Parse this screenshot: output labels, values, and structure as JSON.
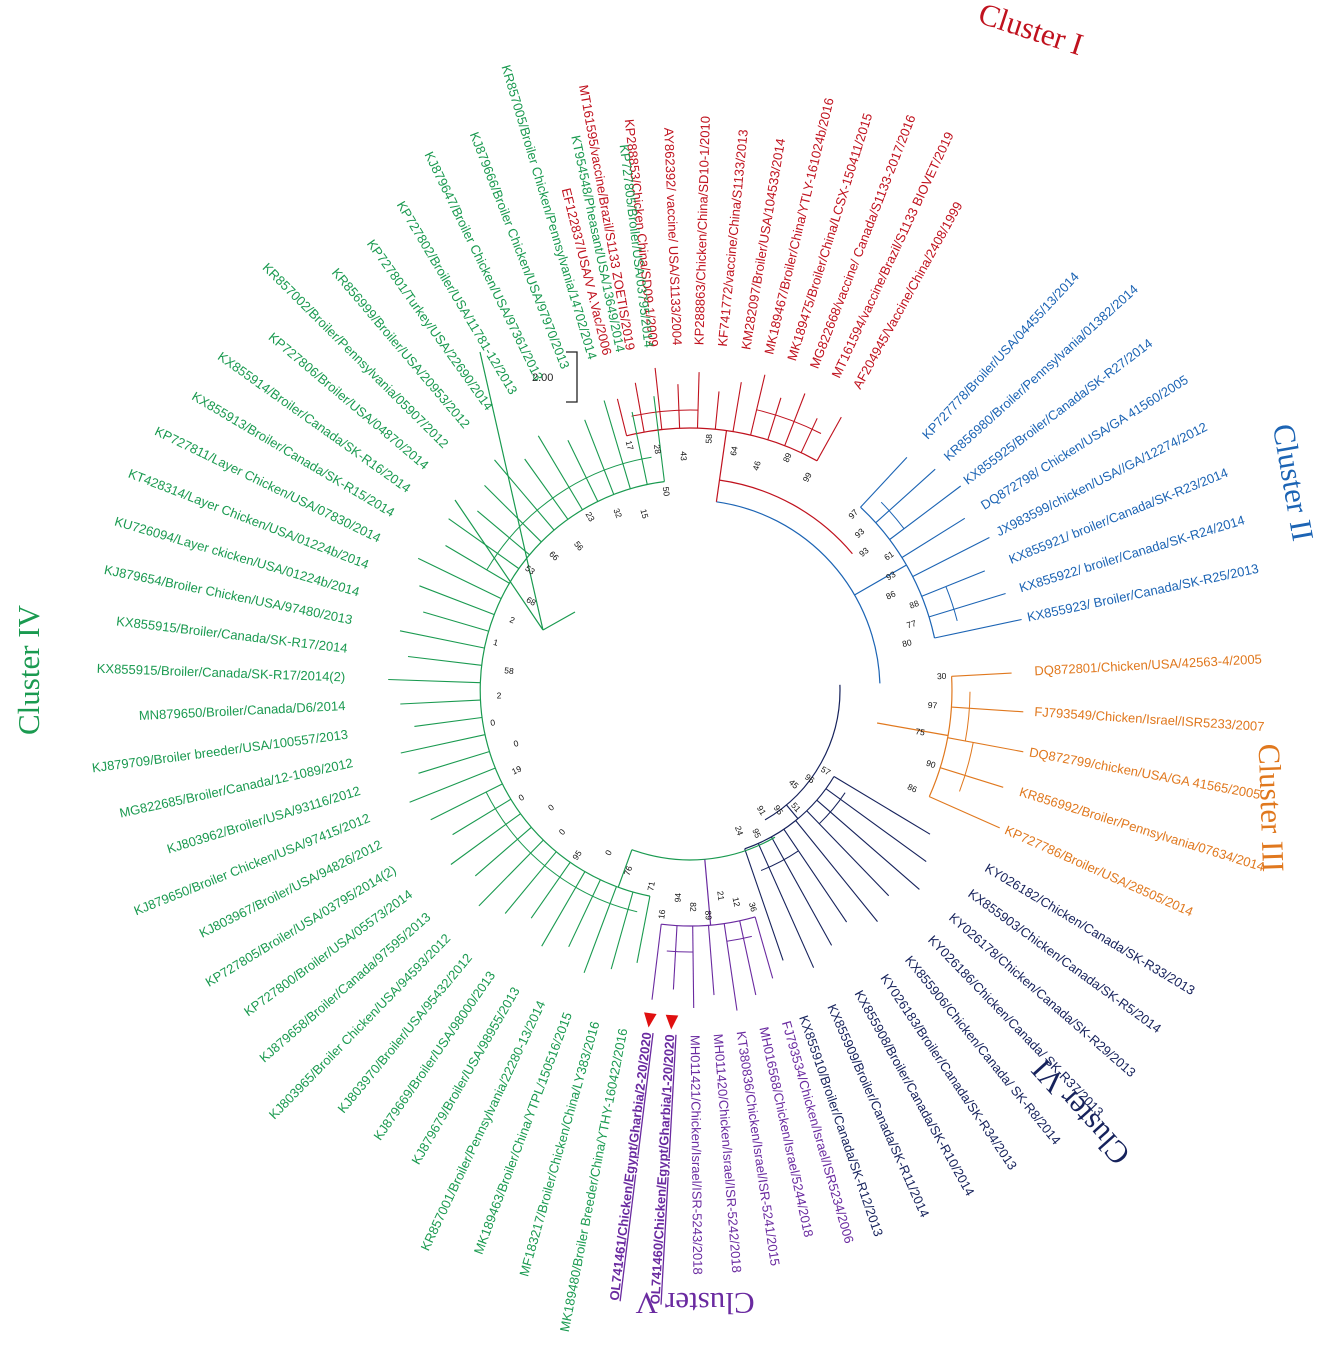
{
  "scale_bar": {
    "label": "2.00"
  },
  "clusters": [
    {
      "id": "I",
      "title": "Cluster I",
      "color": "#c0121e",
      "boot_values": [
        "17",
        "28",
        "43",
        "58",
        "64",
        "46",
        "89",
        "99"
      ],
      "leaves": [
        "EF122837/USA/V A.Vac/2006",
        "MT161595/vaccine/Brazil/S1133 ZOETIS/2019",
        "KP288853/Chicken China/SD09-1/2009",
        "AY862392/ vaccine/ USA/S1133/2004",
        "KP288863/Chicken/China/SD10-1/2010",
        "KF741772/vaccine/China/S1133/2013",
        "KM282097/Broiler/USA/104533/2014",
        "MK189467/Broiler/China/YTLY-161024b/2016",
        "MK189475/Broiler/China/LCSX-150411/2015",
        "MG822668/vaccine/ Canada/S1133-2017/2016",
        "MT161594/vaccine/Brazil/S1133 BIOVET/2019",
        "AF204945/Vaccine/China/2408/1999"
      ]
    },
    {
      "id": "II",
      "title": "Cluster II",
      "color": "#1c64b4",
      "boot_values": [
        "97",
        "93",
        "93",
        "61",
        "93",
        "86",
        "88",
        "77",
        "80"
      ],
      "leaves": [
        "KP727778/Broiler/USA/04455/13/2014",
        "KR856980/Broiler/Pennsylvania/01382/2014",
        "KX855925/Broiler/Canada/SK-R27/2014",
        "DQ872798/ Chicken/USA/GA 41560/2005",
        "JX983599/chicken/USA//GA/12274/2012",
        "KX855921/ broiler/Canada/SK-R23/2014",
        "KX855922/ broiler/Canada/SK-R24/2014",
        "KX855923/ Broiler/Canada/SK-R25/2013"
      ]
    },
    {
      "id": "III",
      "title": "Cluster III",
      "color": "#e0781e",
      "boot_values": [
        "30",
        "97",
        "75",
        "90",
        "86"
      ],
      "leaves": [
        "DQ872801/Chicken/USA/42563-4/2005",
        "FJ793549/Chicken/Israel/ISR5233/2007",
        "DQ872799/chicken/USA/GA 41565/2005",
        "KR856992/Broiler/Pennsylvania/07634/2014",
        "KP727786/Broiler/USA/28505/2014"
      ]
    },
    {
      "id": "VI",
      "title": "Cluster VI",
      "color": "#16225c",
      "boot_values": [
        "57",
        "96",
        "45",
        "51",
        "95",
        "91",
        "95",
        "24"
      ],
      "leaves": [
        "KY026182/Chicken/Canada/SK-R33/2013",
        "KX855903/Chicken/Canada/SK-R5/2014",
        "KY026178/Chicken/Canada/SK-R29/2013",
        "KY026186/Chicken/Canada/ SK-R37/2013",
        "KX855906/Chicken/Canada/ SK-R8/2014",
        "KY026183/Broiler/Canada/SK-R34/2013",
        "KX855908/Broiler/Canada/SK-R10/2014",
        "KX855909/Broiler/Canada/SK-R11/2014",
        "KX855910/Broiler/Canada/SK-R12/2013"
      ]
    },
    {
      "id": "V",
      "title": "Cluster V",
      "color": "#6a2aa0",
      "boot_values": [
        "36",
        "12",
        "21",
        "89",
        "82",
        "94",
        "16"
      ],
      "leaves": [
        "FJ793534/Chicken/Israel/ISR5234/2006",
        "MH016568/Chicken/Israel/5244/2018",
        "KT380836/Chicken/Israel/ISR-5241/2015",
        "MH011420/Chicken/Israel/ISR-5242/2018",
        "MH011421/Chicken/Israel/ISR-5243/2018",
        "OL741460/Chicken/Egypt/Gharbia/1-20/2020",
        "OL741461/Chicken/Egypt/Gharbia/2-20/2020"
      ]
    },
    {
      "id": "IV",
      "title": "Cluster IV",
      "color": "#1a9a50",
      "boot_values": [
        "71",
        "76",
        "0",
        "95",
        "0",
        "0",
        "0",
        "19",
        "0",
        "0",
        "2",
        "58",
        "1",
        "2",
        "68",
        "53",
        "66",
        "56",
        "23",
        "32",
        "15",
        "50"
      ],
      "leaves": [
        "MK189480/Broiler Breeder/China/YTHY-160422/2016",
        "MF183217/Broiler/Chicken/China/LY383/2016",
        "MK189463/Broiler/China/YTPL/150516/2015",
        "KR857001/Broiler/Pennsylvania/22280-13/2014",
        "KJ879679/Broiler/USA/98955/2013",
        "KJ879669/Broiler/USA/98000/2013",
        "KJ803970/Broiler/USA/95432/2012",
        "KJ803965/Broiler Chicken/USA/94593/2012",
        "KJ879658/Broiler/Canada/97595/2013",
        "KP727800/Broiler/USA/05573/2014",
        "KP727805/Broiler/USA/03795/2014(2)",
        "KJ803967/Broiler/USA/94826/2012",
        "KJ879650/Broiler Chicken/USA/97415/2012",
        "KJ803962/Broiler/USA/93116/2012",
        "MG822685/Broiler/Canada/12-1089/2012",
        "KJ879709/Broiler breeder/USA/100557/2013",
        "MN879650/Broiler/Canada/D6/2014",
        "KX855915/Broiler/Canada/SK-R17/2014(2)",
        "KX855915/Broiler/Canada/SK-R17/2014",
        "KJ879654/Broiler Chicken/USA/97480/2013",
        "KU726094/Layer ckicken/USA/01224b/2014",
        "KT428314/Layer Chicken/USA/01224b/2014",
        "KP727811/Layer Chicken/USA/07830/2014",
        "KX855913/Broiler/Canada/SK-R15/2014",
        "KX855914/Broiler/Canada/SK-R16/2014",
        "KP727806/Broiler/USA/04870/2014",
        "KR857002/Broiler/Pennsylvania/05907/2012",
        "KR856999/Broiler/USA/20953/2012",
        "KP727801/Turkey/USA/22690/2014",
        "KP727802/Broiler/USA/11781-12/2013",
        "KJ879647/Broiler Chicken/USA/97361/2013",
        "KJ879666/Broiler Chicken/USA/97970/2013",
        "KR857005/Broiler Chicken/Pennsylvania/14702/2014",
        "KT954548/Pheasant/USA/13649/2014",
        "KP727805/Broiler/USA/03795/2014"
      ]
    }
  ]
}
